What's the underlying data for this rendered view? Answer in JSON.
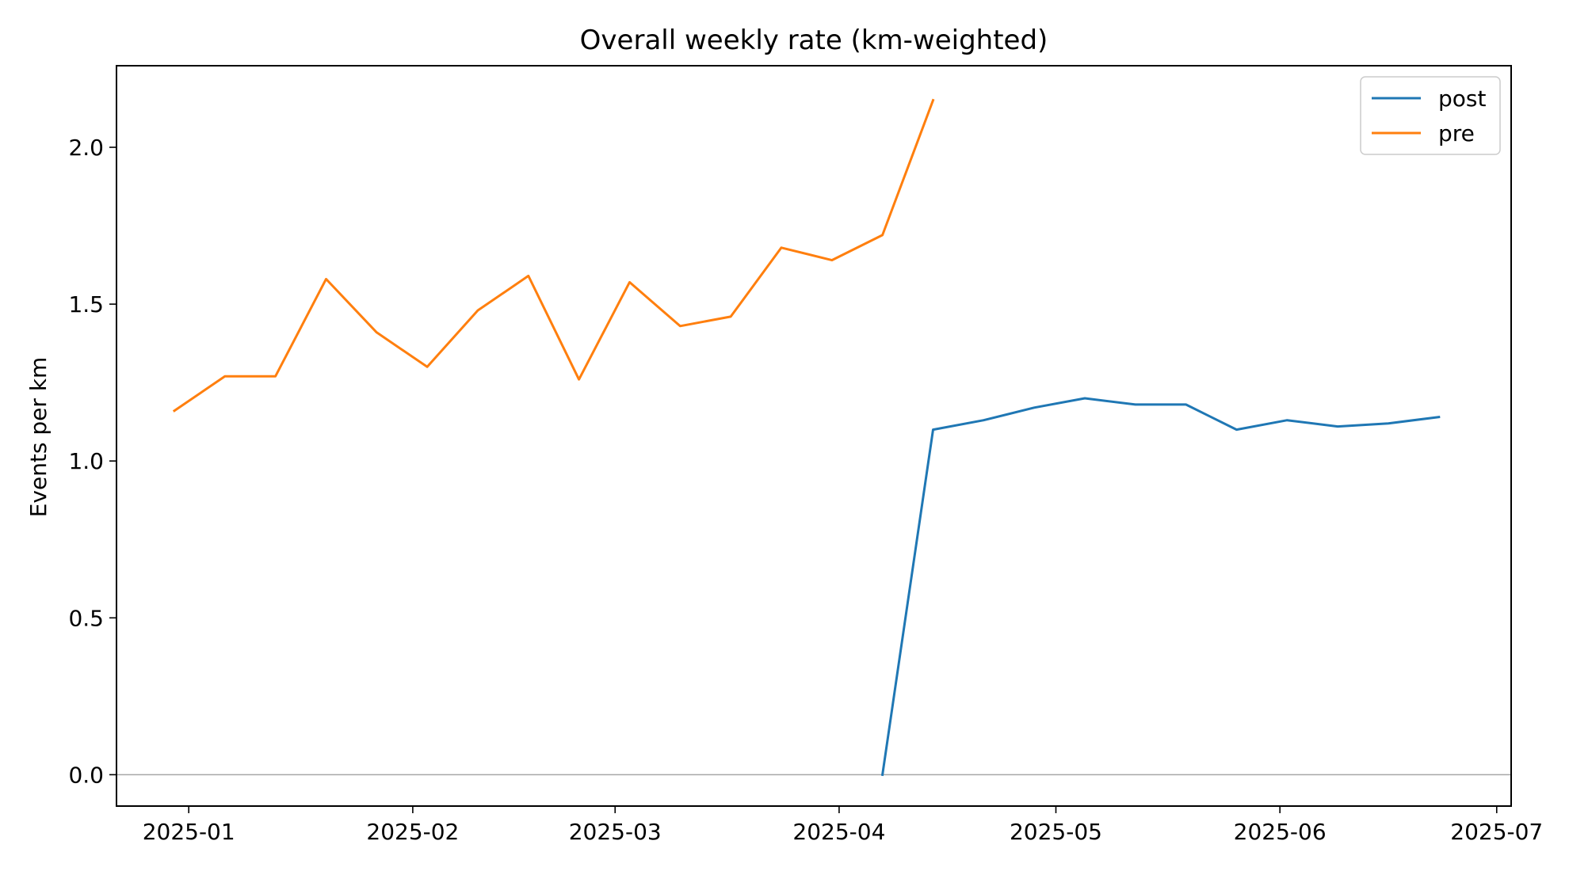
{
  "chart_data": {
    "type": "line",
    "title": "Overall weekly rate (km-weighted)",
    "xlabel": "",
    "ylabel": "Events per km",
    "xlim": [
      "2024-12-22",
      "2025-07-03"
    ],
    "ylim": [
      -0.1,
      2.26
    ],
    "x_ticks": [
      "2025-01",
      "2025-02",
      "2025-03",
      "2025-04",
      "2025-05",
      "2025-06",
      "2025-07"
    ],
    "y_ticks": [
      0.0,
      0.5,
      1.0,
      1.5,
      2.0
    ],
    "y_tick_labels": [
      "0.0",
      "0.5",
      "1.0",
      "1.5",
      "2.0"
    ],
    "grid": false,
    "reference_line": {
      "y": 0.0,
      "color": "#a6a6a6"
    },
    "legend": {
      "position": "top-right",
      "entries": [
        "post",
        "pre"
      ]
    },
    "series": [
      {
        "name": "post",
        "color": "#1f77b4",
        "points": [
          [
            "2025-04-07",
            0.0
          ],
          [
            "2025-04-14",
            1.1
          ],
          [
            "2025-04-21",
            1.13
          ],
          [
            "2025-04-28",
            1.17
          ],
          [
            "2025-05-05",
            1.2
          ],
          [
            "2025-05-12",
            1.18
          ],
          [
            "2025-05-19",
            1.18
          ],
          [
            "2025-05-26",
            1.1
          ],
          [
            "2025-06-02",
            1.13
          ],
          [
            "2025-06-09",
            1.11
          ],
          [
            "2025-06-16",
            1.12
          ],
          [
            "2025-06-23",
            1.14
          ]
        ]
      },
      {
        "name": "pre",
        "color": "#ff7f0e",
        "points": [
          [
            "2024-12-30",
            1.16
          ],
          [
            "2025-01-06",
            1.27
          ],
          [
            "2025-01-13",
            1.27
          ],
          [
            "2025-01-20",
            1.58
          ],
          [
            "2025-01-27",
            1.41
          ],
          [
            "2025-02-03",
            1.3
          ],
          [
            "2025-02-10",
            1.48
          ],
          [
            "2025-02-17",
            1.59
          ],
          [
            "2025-02-24",
            1.26
          ],
          [
            "2025-03-03",
            1.57
          ],
          [
            "2025-03-10",
            1.43
          ],
          [
            "2025-03-17",
            1.46
          ],
          [
            "2025-03-24",
            1.68
          ],
          [
            "2025-03-31",
            1.64
          ],
          [
            "2025-04-07",
            1.72
          ],
          [
            "2025-04-14",
            2.15
          ]
        ]
      }
    ]
  }
}
